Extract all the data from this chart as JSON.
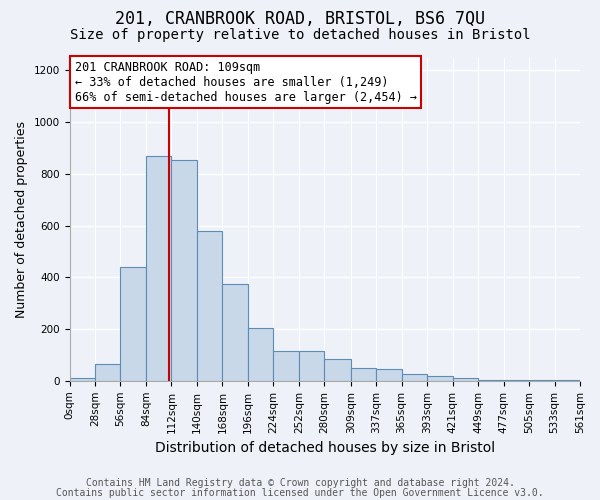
{
  "title": "201, CRANBROOK ROAD, BRISTOL, BS6 7QU",
  "subtitle": "Size of property relative to detached houses in Bristol",
  "xlabel": "Distribution of detached houses by size in Bristol",
  "ylabel": "Number of detached properties",
  "footnote1": "Contains HM Land Registry data © Crown copyright and database right 2024.",
  "footnote2": "Contains public sector information licensed under the Open Government Licence v3.0.",
  "annotation_line1": "201 CRANBROOK ROAD: 109sqm",
  "annotation_line2": "← 33% of detached houses are smaller (1,249)",
  "annotation_line3": "66% of semi-detached houses are larger (2,454) →",
  "property_size": 109,
  "bar_edges": [
    0,
    28,
    56,
    84,
    112,
    140,
    168,
    196,
    224,
    252,
    280,
    309,
    337,
    365,
    393,
    421,
    449,
    477,
    505,
    533,
    561
  ],
  "bar_heights": [
    10,
    65,
    440,
    870,
    855,
    580,
    375,
    205,
    115,
    115,
    85,
    50,
    45,
    25,
    20,
    10,
    5,
    3,
    3,
    2
  ],
  "bar_color": "#c8d8e8",
  "bar_edge_color": "#5b8db8",
  "vline_color": "#cc0000",
  "vline_x": 109,
  "annotation_box_facecolor": "#ffffff",
  "annotation_box_edgecolor": "#cc0000",
  "background_color": "#eef2f8",
  "plot_background": "#eef2f8",
  "ylim": [
    0,
    1250
  ],
  "yticks": [
    0,
    200,
    400,
    600,
    800,
    1000,
    1200
  ],
  "grid_color": "#ffffff",
  "title_fontsize": 12,
  "subtitle_fontsize": 10,
  "xlabel_fontsize": 10,
  "ylabel_fontsize": 9,
  "tick_fontsize": 7.5,
  "annotation_fontsize": 8.5,
  "footnote_fontsize": 7
}
